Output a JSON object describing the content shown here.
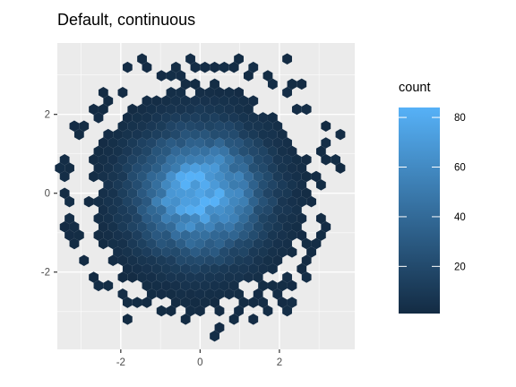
{
  "chart_data": {
    "type": "hexbin",
    "title": "Default, continuous",
    "xlabel": "",
    "ylabel": "",
    "xlim": [
      -3.6,
      3.9
    ],
    "ylim": [
      -3.96,
      3.81
    ],
    "x_ticks": [
      -2,
      0,
      2
    ],
    "x_tick_labels": [
      "-2",
      "0",
      "2"
    ],
    "y_ticks": [
      -2,
      0,
      2
    ],
    "y_tick_labels": [
      "-2",
      "0",
      "2"
    ],
    "grid": true,
    "legend": {
      "title": "count",
      "placement": "right",
      "min": 1,
      "max": 84,
      "ticks": [
        20,
        40,
        60,
        80
      ],
      "tick_labels": [
        "20",
        "40",
        "60",
        "80"
      ],
      "color_low": "#132b43",
      "color_high": "#56b1f7"
    },
    "binwidth": [
      0.244,
      0.213
    ],
    "distribution": {
      "kind": "bivariate-normal",
      "mean": [
        0,
        0
      ],
      "sd": [
        1,
        1
      ],
      "peak_count": 84
    },
    "extra_bins": [
      [
        -1.5,
        3.5
      ],
      [
        -1.75,
        3.29
      ],
      [
        -1.27,
        3.2
      ],
      [
        -1.03,
        2.95
      ],
      [
        -0.29,
        3.45
      ],
      [
        0.95,
        3.45
      ],
      [
        2.15,
        3.41
      ],
      [
        1.45,
        3.2
      ],
      [
        2.5,
        2.85
      ],
      [
        2.25,
        2.55
      ],
      [
        -2.43,
        2.45
      ],
      [
        -2.68,
        2.2
      ],
      [
        -3.25,
        1.75
      ],
      [
        -3.05,
        1.45
      ],
      [
        -3.42,
        0.95
      ],
      [
        -3.2,
        0.65
      ],
      [
        -3.3,
        0.35
      ],
      [
        -3.35,
        -0.05
      ],
      [
        -3.3,
        -0.55
      ],
      [
        -3.2,
        -0.85
      ],
      [
        -3.05,
        -1.15
      ],
      [
        -3.22,
        -1.35
      ],
      [
        -2.85,
        -1.75
      ],
      [
        -2.65,
        -2.1
      ],
      [
        -2.55,
        -2.35
      ],
      [
        -2.25,
        -2.35
      ],
      [
        -1.92,
        -2.55
      ],
      [
        -1.65,
        -2.7
      ],
      [
        -1.37,
        -2.75
      ],
      [
        -1.95,
        -2.85
      ],
      [
        -1.05,
        -2.9
      ],
      [
        -0.85,
        -2.95
      ],
      [
        -0.95,
        -2.6
      ],
      [
        -0.55,
        -2.75
      ],
      [
        -0.35,
        -2.95
      ],
      [
        -0.15,
        -2.75
      ],
      [
        0.05,
        -2.75
      ],
      [
        0.35,
        -2.75
      ],
      [
        0.75,
        -2.65
      ],
      [
        1.0,
        -2.8
      ],
      [
        1.25,
        -2.7
      ],
      [
        1.45,
        -2.55
      ],
      [
        1.65,
        -2.35
      ],
      [
        1.85,
        -2.3
      ],
      [
        2.1,
        -2.05
      ],
      [
        2.55,
        -1.95
      ],
      [
        2.7,
        -1.8
      ],
      [
        2.85,
        -1.55
      ],
      [
        3.0,
        -1.35
      ],
      [
        3.05,
        -0.75
      ],
      [
        2.95,
        -0.55
      ],
      [
        2.75,
        -0.15
      ],
      [
        3.05,
        0.15
      ],
      [
        2.9,
        0.45
      ],
      [
        3.25,
        0.75
      ],
      [
        3.05,
        1.05
      ],
      [
        3.15,
        1.35
      ],
      [
        3.5,
        0.95
      ],
      [
        3.5,
        0.65
      ],
      [
        3.42,
        1.4
      ],
      [
        3.2,
        1.7
      ],
      [
        3.22,
        1.75
      ],
      [
        2.6,
        2.15
      ],
      [
        2.35,
        2.05
      ],
      [
        -2.2,
        2.25
      ],
      [
        -2.4,
        2.05
      ],
      [
        -0.8,
        3.05
      ],
      [
        -0.5,
        2.95
      ],
      [
        0.2,
        3.15
      ],
      [
        0.55,
        3.1
      ],
      [
        -3.35,
        -1.1
      ],
      [
        -1.95,
        -3.2
      ],
      [
        -0.9,
        -3.0
      ],
      [
        -0.25,
        -3.25
      ],
      [
        0.3,
        -3.55
      ],
      [
        0.45,
        -3.4
      ],
      [
        0.75,
        -3.25
      ],
      [
        1.05,
        -3.05
      ],
      [
        1.7,
        -3.05
      ],
      [
        2.05,
        -2.75
      ],
      [
        2.2,
        -3.05
      ],
      [
        1.25,
        -3.2
      ],
      [
        -1.3,
        -2.6
      ],
      [
        2.4,
        -2.35
      ],
      [
        2.65,
        -2.15
      ],
      [
        2.3,
        -2.8
      ],
      [
        2.2,
        0.15
      ],
      [
        3.15,
        -1.15
      ],
      [
        -0.1,
        3.2
      ],
      [
        0.4,
        3.3
      ],
      [
        0.75,
        3.2
      ],
      [
        1.15,
        3.05
      ],
      [
        1.8,
        3.05
      ],
      [
        1.95,
        2.85
      ],
      [
        2.55,
        2.7
      ],
      [
        2.2,
        2.85
      ],
      [
        -0.65,
        3.25
      ],
      [
        -2.0,
        2.6
      ],
      [
        -2.6,
        2.0
      ],
      [
        -2.95,
        1.75
      ],
      [
        -3.45,
        0.55
      ],
      [
        -3.4,
        -0.3
      ],
      [
        -3.45,
        -0.8
      ],
      [
        2.0,
        -2.55
      ],
      [
        2.35,
        -1.55
      ],
      [
        2.75,
        -1.2
      ],
      [
        2.1,
        -2.4
      ],
      [
        1.55,
        -2.85
      ],
      [
        0.6,
        -3.0
      ],
      [
        0.1,
        -3.05
      ]
    ]
  }
}
